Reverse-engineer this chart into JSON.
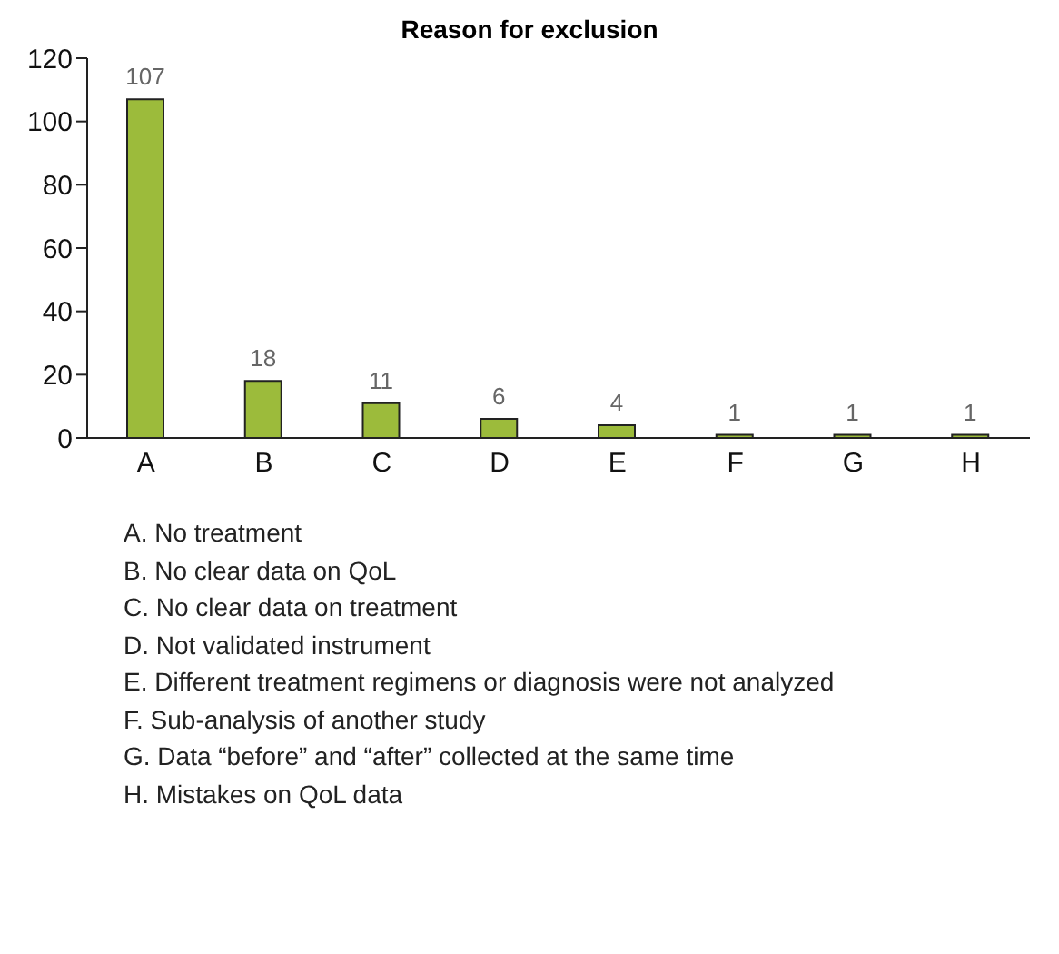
{
  "chart_data": {
    "type": "bar",
    "title": "Reason for exclusion",
    "categories": [
      "A",
      "B",
      "C",
      "D",
      "E",
      "F",
      "G",
      "H"
    ],
    "values": [
      107,
      18,
      11,
      6,
      4,
      1,
      1,
      1
    ],
    "color": "#9cbb3b",
    "ylim": [
      0,
      120
    ],
    "yticks": [
      0,
      20,
      40,
      60,
      80,
      100,
      120
    ],
    "grid": false,
    "data_labels": true,
    "annotations": [
      "A.  No treatment",
      "B.  No clear data on QoL",
      "C.  No clear data on treatment",
      "D.  Not validated instrument",
      "E.  Different treatment regimens or diagnosis were not analyzed",
      "F.  Sub-analysis of another study",
      "G.  Data “before” and “after” collected at the same time",
      "H.  Mistakes on QoL data"
    ]
  }
}
